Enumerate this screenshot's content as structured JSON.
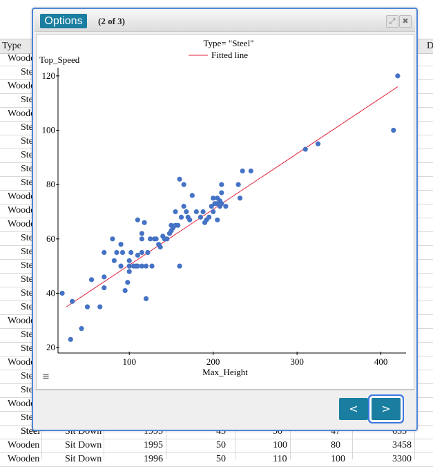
{
  "table": {
    "header_type": "Type",
    "header_right": "D",
    "row_types": [
      "Wooden",
      "Steel",
      "Wooden",
      "Steel",
      "Wooden",
      "Steel",
      "Steel",
      "Steel",
      "Steel",
      "Steel",
      "Wooden",
      "Wooden",
      "Wooden",
      "Steel",
      "Steel",
      "Steel",
      "Steel",
      "Steel",
      "Steel",
      "Wooden",
      "Steel",
      "Steel",
      "Wooden",
      "Steel",
      "Steel",
      "Wooden",
      "Steel",
      "Steel"
    ],
    "bottom_rows": [
      {
        "type": "Steel",
        "design": "Sit Down",
        "year": "1995",
        "c4": "45",
        "c5": "50",
        "c6": "47",
        "c7": "655"
      },
      {
        "type": "Wooden",
        "design": "Sit Down",
        "year": "1995",
        "c4": "50",
        "c5": "100",
        "c6": "80",
        "c7": "3458"
      },
      {
        "type": "Wooden",
        "design": "Sit Down",
        "year": "1996",
        "c4": "50",
        "c5": "110",
        "c6": "100",
        "c7": "3300"
      }
    ]
  },
  "dialog": {
    "options_label": "Options",
    "page_indicator": "(2 of 3)",
    "expand_icon": "⤢",
    "close_icon": "✖",
    "menu_icon": "≡",
    "prev_label": "<",
    "next_label": ">"
  },
  "chart_data": {
    "type": "scatter",
    "title": "Type= \"Steel\"",
    "legend": [
      "Fitted line"
    ],
    "legend_placement": "top-center",
    "xlabel": "Max_Height",
    "ylabel": "Top_Speed",
    "xlim": [
      15,
      430
    ],
    "ylim": [
      18,
      122
    ],
    "xticks": [
      100,
      200,
      300,
      400
    ],
    "yticks": [
      20,
      40,
      60,
      80,
      100,
      120
    ],
    "point_color": "#4472c4",
    "line_color": "#e0203c",
    "fitted_line": {
      "x": [
        25,
        420
      ],
      "y": [
        35,
        116
      ]
    },
    "points": [
      [
        20,
        40
      ],
      [
        30,
        23
      ],
      [
        32,
        37
      ],
      [
        43,
        27
      ],
      [
        50,
        35
      ],
      [
        55,
        45
      ],
      [
        65,
        35
      ],
      [
        70,
        42
      ],
      [
        70,
        46
      ],
      [
        70,
        55
      ],
      [
        80,
        60
      ],
      [
        82,
        52
      ],
      [
        85,
        55
      ],
      [
        90,
        58
      ],
      [
        90,
        50
      ],
      [
        92,
        55
      ],
      [
        95,
        41
      ],
      [
        98,
        44
      ],
      [
        100,
        48
      ],
      [
        100,
        50
      ],
      [
        100,
        52
      ],
      [
        102,
        55
      ],
      [
        105,
        50
      ],
      [
        108,
        50
      ],
      [
        110,
        54
      ],
      [
        110,
        50
      ],
      [
        110,
        67
      ],
      [
        115,
        55
      ],
      [
        115,
        50
      ],
      [
        115,
        60
      ],
      [
        115,
        62
      ],
      [
        118,
        66
      ],
      [
        120,
        50
      ],
      [
        120,
        38
      ],
      [
        122,
        55
      ],
      [
        125,
        60
      ],
      [
        127,
        50
      ],
      [
        130,
        60
      ],
      [
        132,
        60
      ],
      [
        135,
        58
      ],
      [
        137,
        57
      ],
      [
        140,
        61
      ],
      [
        142,
        60
      ],
      [
        145,
        60
      ],
      [
        148,
        62
      ],
      [
        150,
        65
      ],
      [
        150,
        63
      ],
      [
        152,
        64
      ],
      [
        155,
        70
      ],
      [
        155,
        65
      ],
      [
        158,
        65
      ],
      [
        160,
        82
      ],
      [
        160,
        50
      ],
      [
        162,
        68
      ],
      [
        165,
        80
      ],
      [
        165,
        72
      ],
      [
        168,
        70
      ],
      [
        170,
        68
      ],
      [
        172,
        67
      ],
      [
        175,
        76
      ],
      [
        180,
        70
      ],
      [
        185,
        68
      ],
      [
        188,
        70
      ],
      [
        190,
        66
      ],
      [
        192,
        67
      ],
      [
        195,
        68
      ],
      [
        198,
        72
      ],
      [
        200,
        75
      ],
      [
        200,
        70
      ],
      [
        202,
        73
      ],
      [
        205,
        67
      ],
      [
        205,
        75
      ],
      [
        205,
        73
      ],
      [
        208,
        72
      ],
      [
        208,
        74
      ],
      [
        210,
        77
      ],
      [
        210,
        80
      ],
      [
        210,
        73
      ],
      [
        215,
        72
      ],
      [
        230,
        80
      ],
      [
        232,
        75
      ],
      [
        235,
        85
      ],
      [
        245,
        85
      ],
      [
        310,
        93
      ],
      [
        325,
        95
      ],
      [
        415,
        100
      ],
      [
        420,
        120
      ]
    ]
  }
}
